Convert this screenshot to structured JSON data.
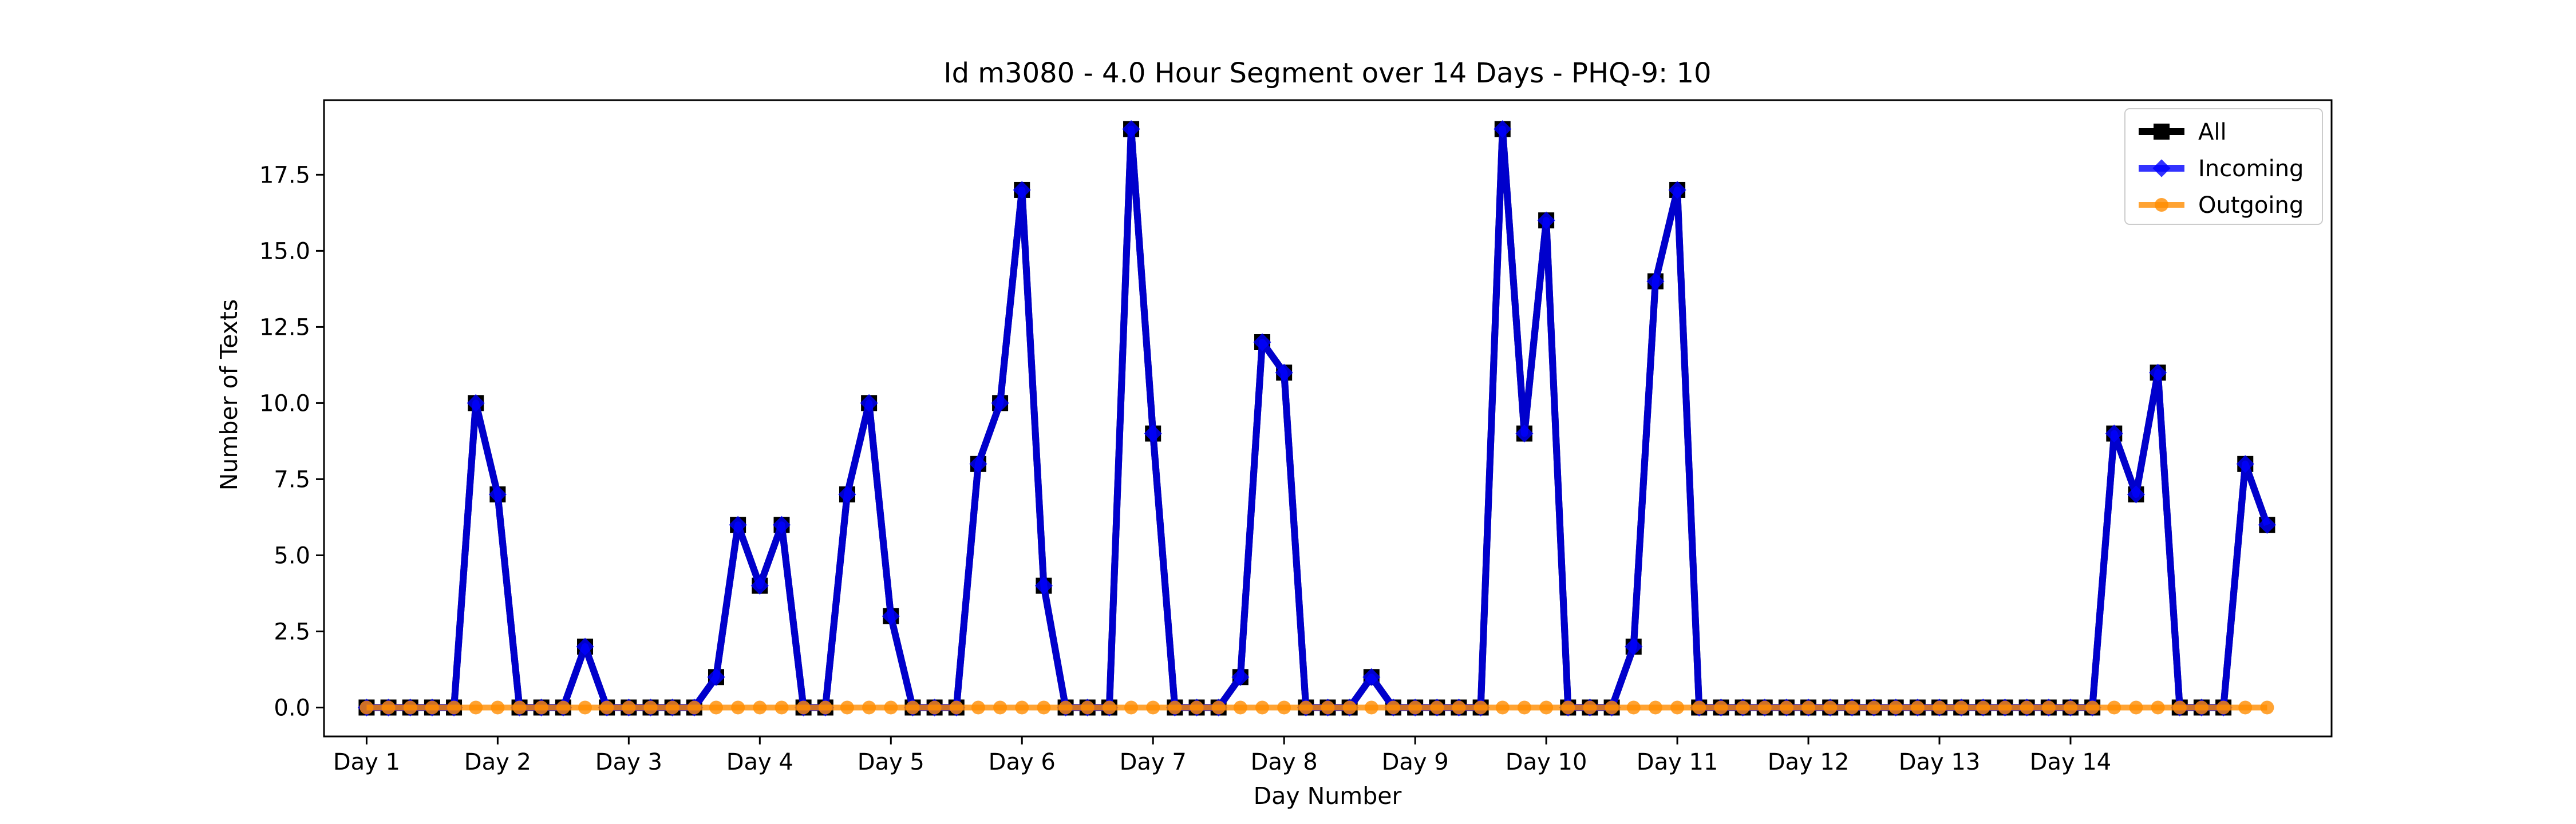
{
  "chart_data": {
    "type": "line",
    "title": "Id m3080 - 4.0 Hour Segment over 14 Days - PHQ-9: 10",
    "xlabel": "Day Number",
    "ylabel": "Number of Texts",
    "xlim": [
      -1.95,
      89.95
    ],
    "ylim": [
      -0.95,
      19.95
    ],
    "x_ticks": [
      {
        "value": 0,
        "label": "Day 1"
      },
      {
        "value": 6,
        "label": "Day 2"
      },
      {
        "value": 12,
        "label": "Day 3"
      },
      {
        "value": 18,
        "label": "Day 4"
      },
      {
        "value": 24,
        "label": "Day 5"
      },
      {
        "value": 30,
        "label": "Day 6"
      },
      {
        "value": 36,
        "label": "Day 7"
      },
      {
        "value": 42,
        "label": "Day 8"
      },
      {
        "value": 48,
        "label": "Day 9"
      },
      {
        "value": 54,
        "label": "Day 10"
      },
      {
        "value": 60,
        "label": "Day 11"
      },
      {
        "value": 66,
        "label": "Day 12"
      },
      {
        "value": 72,
        "label": "Day 13"
      },
      {
        "value": 78,
        "label": "Day 14"
      }
    ],
    "y_ticks": [
      {
        "value": 0,
        "label": "0.0"
      },
      {
        "value": 2.5,
        "label": "2.5"
      },
      {
        "value": 5,
        "label": "5.0"
      },
      {
        "value": 7.5,
        "label": "7.5"
      },
      {
        "value": 10,
        "label": "10.0"
      },
      {
        "value": 12.5,
        "label": "12.5"
      },
      {
        "value": 15,
        "label": "15.0"
      },
      {
        "value": 17.5,
        "label": "17.5"
      }
    ],
    "grid": false,
    "legend_position": "top-right",
    "series": [
      {
        "name": "All",
        "color": "#000000",
        "marker": "square",
        "x_start": 0,
        "values": [
          0,
          0,
          0,
          0,
          0,
          10,
          7,
          0,
          0,
          0,
          2,
          0,
          0,
          0,
          0,
          0,
          1,
          6,
          4,
          6,
          0,
          0,
          7,
          10,
          3,
          0,
          0,
          0,
          8,
          10,
          17,
          4,
          0,
          0,
          0,
          19,
          9,
          0,
          0,
          0,
          1,
          12,
          11,
          0,
          0,
          0,
          1,
          0,
          0,
          0,
          0,
          0,
          19,
          9,
          16,
          0,
          0,
          0,
          2,
          14,
          17,
          0,
          0,
          0,
          0,
          0,
          0,
          0,
          0,
          0,
          0,
          0,
          0,
          0,
          0,
          0,
          0,
          0,
          0,
          0,
          9,
          7,
          11,
          0,
          0,
          0,
          8,
          6
        ]
      },
      {
        "name": "Incoming",
        "color": "#0000ff",
        "marker": "diamond",
        "x_start": 0,
        "values": [
          0,
          0,
          0,
          0,
          0,
          10,
          7,
          0,
          0,
          0,
          2,
          0,
          0,
          0,
          0,
          0,
          1,
          6,
          4,
          6,
          0,
          0,
          7,
          10,
          3,
          0,
          0,
          0,
          8,
          10,
          17,
          4,
          0,
          0,
          0,
          19,
          9,
          0,
          0,
          0,
          1,
          12,
          11,
          0,
          0,
          0,
          1,
          0,
          0,
          0,
          0,
          0,
          19,
          9,
          16,
          0,
          0,
          0,
          2,
          14,
          17,
          0,
          0,
          0,
          0,
          0,
          0,
          0,
          0,
          0,
          0,
          0,
          0,
          0,
          0,
          0,
          0,
          0,
          0,
          0,
          9,
          7,
          11,
          0,
          0,
          0,
          8,
          6
        ]
      },
      {
        "name": "Outgoing",
        "color": "#ff8c00",
        "marker": "circle",
        "x_start": 0,
        "values": [
          0,
          0,
          0,
          0,
          0,
          0,
          0,
          0,
          0,
          0,
          0,
          0,
          0,
          0,
          0,
          0,
          0,
          0,
          0,
          0,
          0,
          0,
          0,
          0,
          0,
          0,
          0,
          0,
          0,
          0,
          0,
          0,
          0,
          0,
          0,
          0,
          0,
          0,
          0,
          0,
          0,
          0,
          0,
          0,
          0,
          0,
          0,
          0,
          0,
          0,
          0,
          0,
          0,
          0,
          0,
          0,
          0,
          0,
          0,
          0,
          0,
          0,
          0,
          0,
          0,
          0,
          0,
          0,
          0,
          0,
          0,
          0,
          0,
          0,
          0,
          0,
          0,
          0,
          0,
          0,
          0,
          0,
          0,
          0,
          0,
          0,
          0,
          0
        ]
      }
    ]
  }
}
